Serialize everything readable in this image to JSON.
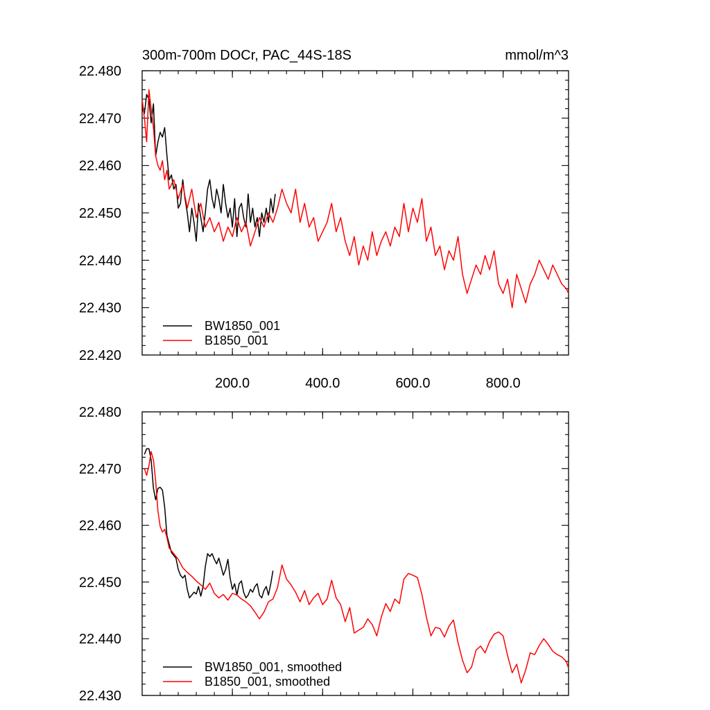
{
  "title": "300m-700m DOCr, PAC_44S-18S",
  "units": "mmol/m^3",
  "colors": {
    "BW1850_001": "#000000",
    "B1850_001": "#ff0000"
  },
  "chart_data": [
    {
      "type": "line",
      "panel": "top",
      "xlim": [
        0,
        945
      ],
      "ylim": [
        22.42,
        22.48
      ],
      "xticks": [
        200,
        400,
        600,
        800
      ],
      "xtick_labels": [
        "200.0",
        "400.0",
        "600.0",
        "800.0"
      ],
      "yticks": [
        22.42,
        22.43,
        22.44,
        22.45,
        22.46,
        22.47,
        22.48
      ],
      "ytick_labels": [
        "22.420",
        "22.430",
        "22.440",
        "22.450",
        "22.460",
        "22.470",
        "22.480"
      ],
      "legend_position": "bottom-left",
      "grid": false,
      "series": [
        {
          "name": "BW1850_001",
          "color": "#000000",
          "x": [
            0,
            5,
            10,
            15,
            20,
            25,
            30,
            35,
            40,
            45,
            50,
            55,
            60,
            65,
            70,
            75,
            80,
            85,
            90,
            95,
            100,
            105,
            110,
            115,
            120,
            125,
            130,
            135,
            140,
            145,
            150,
            155,
            160,
            165,
            170,
            175,
            180,
            185,
            190,
            195,
            200,
            205,
            210,
            215,
            220,
            225,
            230,
            235,
            240,
            245,
            250,
            255,
            260,
            265,
            270,
            275,
            280,
            285,
            290,
            295
          ],
          "y": [
            22.472,
            22.471,
            22.475,
            22.474,
            22.469,
            22.473,
            22.462,
            22.465,
            22.467,
            22.466,
            22.468,
            22.462,
            22.457,
            22.458,
            22.455,
            22.456,
            22.451,
            22.452,
            22.457,
            22.453,
            22.45,
            22.446,
            22.451,
            22.448,
            22.444,
            22.452,
            22.449,
            22.446,
            22.45,
            22.455,
            22.457,
            22.453,
            22.451,
            22.455,
            22.453,
            22.45,
            22.456,
            22.452,
            22.449,
            22.451,
            22.447,
            22.453,
            22.445,
            22.451,
            22.452,
            22.449,
            22.447,
            22.454,
            22.448,
            22.451,
            22.447,
            22.449,
            22.445,
            22.45,
            22.448,
            22.451,
            22.448,
            22.453,
            22.45,
            22.454
          ]
        },
        {
          "name": "B1850_001",
          "color": "#ff0000",
          "x": [
            0,
            5,
            10,
            15,
            20,
            25,
            30,
            35,
            40,
            45,
            50,
            55,
            60,
            70,
            80,
            90,
            100,
            110,
            120,
            130,
            140,
            150,
            160,
            170,
            180,
            190,
            200,
            210,
            220,
            230,
            240,
            250,
            260,
            270,
            280,
            290,
            300,
            310,
            320,
            330,
            340,
            350,
            360,
            370,
            380,
            390,
            400,
            410,
            420,
            430,
            440,
            450,
            460,
            470,
            480,
            490,
            500,
            510,
            520,
            530,
            540,
            550,
            560,
            570,
            580,
            590,
            600,
            610,
            620,
            630,
            640,
            650,
            660,
            670,
            680,
            690,
            700,
            710,
            720,
            730,
            740,
            750,
            760,
            770,
            780,
            790,
            800,
            810,
            820,
            830,
            840,
            850,
            860,
            870,
            880,
            890,
            900,
            910,
            920,
            930,
            940,
            945
          ],
          "y": [
            22.474,
            22.47,
            22.465,
            22.476,
            22.472,
            22.468,
            22.462,
            22.46,
            22.459,
            22.461,
            22.457,
            22.459,
            22.455,
            22.457,
            22.453,
            22.456,
            22.451,
            22.455,
            22.449,
            22.452,
            22.447,
            22.449,
            22.446,
            22.448,
            22.444,
            22.447,
            22.445,
            22.449,
            22.446,
            22.448,
            22.443,
            22.446,
            22.449,
            22.447,
            22.45,
            22.448,
            22.451,
            22.455,
            22.452,
            22.45,
            22.455,
            22.448,
            22.452,
            22.447,
            22.449,
            22.444,
            22.446,
            22.448,
            22.452,
            22.446,
            22.449,
            22.444,
            22.441,
            22.445,
            22.439,
            22.443,
            22.44,
            22.446,
            22.441,
            22.444,
            22.446,
            22.443,
            22.447,
            22.445,
            22.452,
            22.446,
            22.451,
            22.448,
            22.453,
            22.444,
            22.447,
            22.441,
            22.443,
            22.438,
            22.442,
            22.44,
            22.445,
            22.437,
            22.433,
            22.436,
            22.439,
            22.437,
            22.441,
            22.438,
            22.442,
            22.435,
            22.433,
            22.436,
            22.43,
            22.437,
            22.434,
            22.431,
            22.435,
            22.437,
            22.44,
            22.438,
            22.436,
            22.439,
            22.437,
            22.435,
            22.434,
            22.433
          ]
        }
      ]
    },
    {
      "type": "line",
      "panel": "bottom",
      "xlim": [
        0,
        945
      ],
      "ylim": [
        22.43,
        22.48
      ],
      "xticks": [
        200,
        400,
        600,
        800
      ],
      "xtick_labels": [],
      "yticks": [
        22.43,
        22.44,
        22.45,
        22.46,
        22.47,
        22.48
      ],
      "ytick_labels": [
        "22.430",
        "22.440",
        "22.450",
        "22.460",
        "22.470",
        "22.480"
      ],
      "legend_position": "bottom-left",
      "grid": false,
      "series": [
        {
          "name": "BW1850_001, smoothed",
          "color": "#000000",
          "x": [
            5,
            10,
            15,
            20,
            25,
            30,
            35,
            40,
            45,
            50,
            55,
            60,
            65,
            70,
            75,
            80,
            85,
            90,
            95,
            100,
            105,
            110,
            115,
            120,
            125,
            130,
            135,
            140,
            145,
            150,
            155,
            160,
            165,
            170,
            175,
            180,
            185,
            190,
            195,
            200,
            205,
            210,
            215,
            220,
            225,
            230,
            235,
            240,
            245,
            250,
            255,
            260,
            265,
            270,
            275,
            280,
            285,
            290
          ],
          "y": [
            22.4725,
            22.4735,
            22.4735,
            22.4715,
            22.4665,
            22.4645,
            22.4665,
            22.4667,
            22.4662,
            22.4632,
            22.4582,
            22.4567,
            22.4552,
            22.4547,
            22.4542,
            22.4522,
            22.4512,
            22.4507,
            22.4512,
            22.4487,
            22.4472,
            22.4477,
            22.4482,
            22.4479,
            22.4492,
            22.4475,
            22.4492,
            22.4527,
            22.455,
            22.4545,
            22.455,
            22.454,
            22.4532,
            22.4542,
            22.4527,
            22.4512,
            22.4522,
            22.454,
            22.4507,
            22.4487,
            22.4497,
            22.4477,
            22.4497,
            22.4502,
            22.4482,
            22.4472,
            22.4477,
            22.4487,
            22.4482,
            22.4492,
            22.4497,
            22.4477,
            22.4472,
            22.4485,
            22.4492,
            22.4477,
            22.4497,
            22.452
          ]
        },
        {
          "name": "B1850_001, smoothed",
          "color": "#ff0000",
          "x": [
            5,
            10,
            15,
            20,
            25,
            30,
            35,
            40,
            45,
            50,
            55,
            60,
            70,
            80,
            90,
            100,
            110,
            120,
            130,
            140,
            150,
            160,
            170,
            180,
            190,
            200,
            210,
            220,
            230,
            240,
            250,
            260,
            270,
            280,
            290,
            300,
            310,
            320,
            330,
            340,
            350,
            360,
            370,
            380,
            390,
            400,
            410,
            420,
            430,
            440,
            450,
            460,
            470,
            480,
            490,
            500,
            510,
            520,
            530,
            540,
            550,
            560,
            570,
            580,
            590,
            600,
            610,
            620,
            630,
            640,
            650,
            660,
            670,
            680,
            690,
            700,
            710,
            720,
            730,
            740,
            750,
            760,
            770,
            780,
            790,
            800,
            810,
            820,
            830,
            840,
            850,
            860,
            870,
            880,
            890,
            900,
            910,
            920,
            930,
            940,
            945
          ],
          "y": [
            22.47,
            22.4688,
            22.4705,
            22.473,
            22.4715,
            22.4678,
            22.4625,
            22.4598,
            22.4588,
            22.4593,
            22.4578,
            22.456,
            22.455,
            22.454,
            22.4525,
            22.4517,
            22.451,
            22.4502,
            22.4495,
            22.4487,
            22.4498,
            22.448,
            22.4472,
            22.4478,
            22.4468,
            22.448,
            22.4477,
            22.447,
            22.4465,
            22.4458,
            22.4447,
            22.4435,
            22.4447,
            22.4465,
            22.447,
            22.449,
            22.453,
            22.4505,
            22.4495,
            22.4482,
            22.4465,
            22.4485,
            22.446,
            22.4472,
            22.448,
            22.446,
            22.447,
            22.4503,
            22.4472,
            22.446,
            22.443,
            22.4455,
            22.441,
            22.4415,
            22.442,
            22.4435,
            22.4425,
            22.4405,
            22.4438,
            22.4462,
            22.4448,
            22.447,
            22.4462,
            22.4505,
            22.4515,
            22.4512,
            22.4508,
            22.4478,
            22.4438,
            22.4405,
            22.442,
            22.4418,
            22.4403,
            22.4422,
            22.4433,
            22.4393,
            22.4362,
            22.434,
            22.435,
            22.438,
            22.4387,
            22.4375,
            22.4395,
            22.4408,
            22.4412,
            22.4405,
            22.437,
            22.434,
            22.4355,
            22.4322,
            22.4345,
            22.4375,
            22.4372,
            22.4388,
            22.44,
            22.439,
            22.4378,
            22.4372,
            22.4368,
            22.436,
            22.4348
          ]
        }
      ]
    }
  ]
}
